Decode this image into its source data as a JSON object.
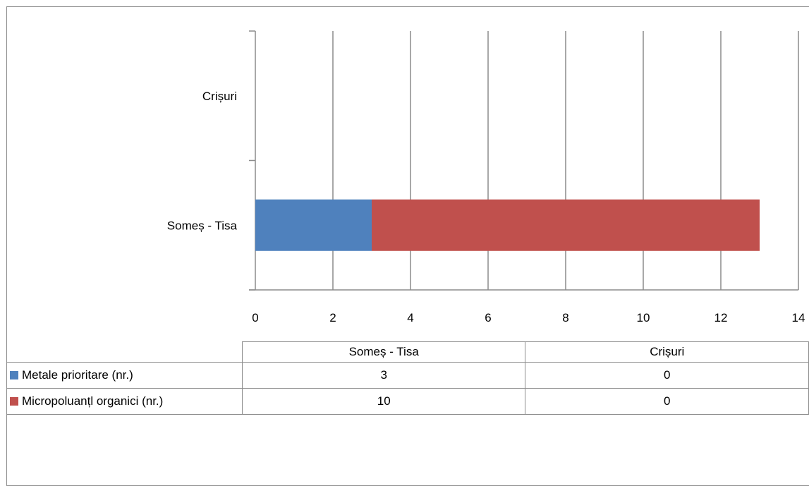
{
  "colors": {
    "series_1": "#4f81bd",
    "series_2": "#c0504d",
    "grid": "#8c8c8c",
    "axis": "#8c8c8c"
  },
  "chart_data": {
    "type": "bar",
    "orientation": "horizontal",
    "stacked": true,
    "categories": [
      "Someș - Tisa",
      "Crișuri"
    ],
    "series": [
      {
        "name": "Metale prioritare (nr.)",
        "values": [
          3,
          0
        ],
        "color": "#4f81bd"
      },
      {
        "name": "Micropoluanțl organici (nr.)",
        "values": [
          10,
          0
        ],
        "color": "#c0504d"
      }
    ],
    "xlim": [
      0,
      14
    ],
    "xticks": [
      0,
      2,
      4,
      6,
      8,
      10,
      12,
      14
    ],
    "grid": "vertical",
    "legend": "data-table-below",
    "data_table": {
      "header": [
        "Someș - Tisa",
        "Crișuri"
      ],
      "rows": [
        {
          "label": "Metale prioritare (nr.)",
          "values": [
            "3",
            "0"
          ]
        },
        {
          "label": "Micropoluanțl organici (nr.)",
          "values": [
            "10",
            "0"
          ]
        }
      ]
    }
  }
}
